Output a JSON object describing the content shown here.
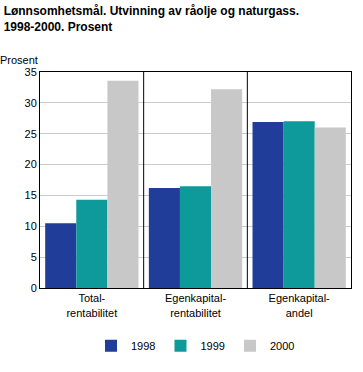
{
  "chart_data": {
    "type": "bar",
    "title": "Lønnsomhetsmål. Utvinning av råolje og naturgass.\n1998-2000. Prosent",
    "y_label": "Prosent",
    "categories": [
      "Total-\nrentabilitet",
      "Egenkapital-\nrentabilitet",
      "Egenkapital-\nandel"
    ],
    "series": [
      {
        "name": "1998",
        "color": "#1f3d99",
        "values": [
          10.5,
          16.2,
          26.9
        ]
      },
      {
        "name": "1999",
        "color": "#0e9a9a",
        "values": [
          14.3,
          16.5,
          27.0
        ]
      },
      {
        "name": "2000",
        "color": "#c8c8c8",
        "values": [
          33.6,
          32.2,
          26.0
        ]
      }
    ],
    "ylim": [
      0,
      35
    ],
    "yticks": [
      0,
      5,
      10,
      15,
      20,
      25,
      30,
      35
    ],
    "grid": true,
    "legend": "bottom"
  }
}
